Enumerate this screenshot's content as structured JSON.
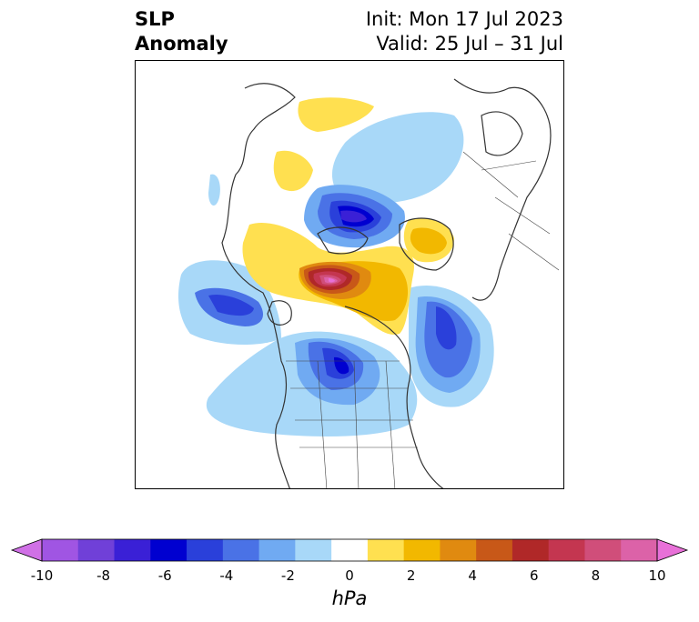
{
  "title": {
    "left_line1": "SLP",
    "left_line2": "Anomaly",
    "right_line1": "Init: Mon 17 Jul 2023",
    "right_line2": "Valid: 25 Jul – 31 Jul"
  },
  "colorbar": {
    "unit": "hPa",
    "ticks": [
      "-10",
      "-8",
      "-6",
      "-4",
      "-2",
      "0",
      "2",
      "4",
      "6",
      "8",
      "10"
    ],
    "colors": [
      "#d070e6",
      "#a055e3",
      "#7040d8",
      "#3a20d6",
      "#0000d0",
      "#2a40da",
      "#4a72e6",
      "#70aaf2",
      "#a8d8f8",
      "#ffffff",
      "#ffe050",
      "#f2b800",
      "#e08a10",
      "#c85818",
      "#b02828",
      "#c43650",
      "#d04e7a",
      "#dc62a8",
      "#e870d8"
    ]
  }
}
